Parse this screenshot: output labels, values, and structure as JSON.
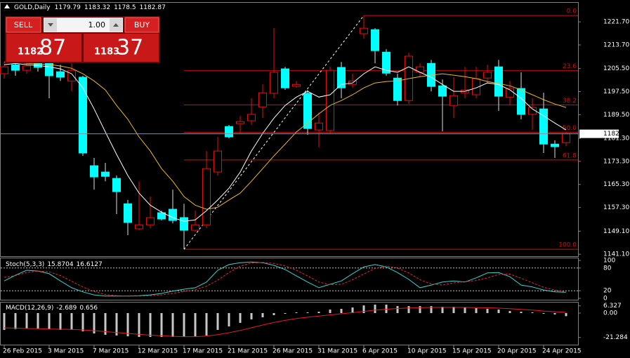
{
  "header": {
    "symbol": "GOLD,Daily"
  },
  "trade_panel": {
    "sell": "SELL",
    "buy": "BUY",
    "lots": "1.00",
    "bid_main": "1182",
    "bid_pips": "87",
    "ask_main": "1183",
    "ask_pips": "37"
  },
  "chart_data": [
    {
      "type": "candlestick",
      "categories": [
        "26 Feb 2015",
        null,
        null,
        null,
        "3 Mar 2015",
        null,
        null,
        null,
        "7 Mar 2015",
        null,
        null,
        null,
        "12 Mar 2015",
        null,
        null,
        null,
        "17 Mar 2015",
        null,
        null,
        null,
        "21 Mar 2015",
        null,
        null,
        null,
        "26 Mar 2015",
        null,
        null,
        null,
        "31 Mar 2015",
        null,
        null,
        null,
        "6 Apr 2015",
        null,
        null,
        null,
        "10 Apr 2015",
        null,
        null,
        null,
        "15 Apr 2015",
        null,
        null,
        null,
        "20 Apr 2015",
        null,
        null,
        null,
        "24 Apr 2015",
        null,
        null
      ],
      "open": [
        1203.7,
        1206.8,
        1204.9,
        1207.3,
        1207.8,
        1204.4,
        1201.2,
        1202.5,
        1171.8,
        1169.6,
        1167.4,
        1158.6,
        1149.9,
        1151.3,
        1155.5,
        1156.7,
        1153.8,
        1149.4,
        1151.3,
        1169.6,
        1185.4,
        1186.4,
        1187.4,
        1192.2,
        1196.9,
        1205.4,
        1199.3,
        1196.9,
        1184.2,
        1184.0,
        1205.9,
        1200.0,
        1217.6,
        1219.0,
        1211.2,
        1202.2,
        1194.4,
        1204.2,
        1207.3,
        1199.5,
        1192.7,
        1197.1,
        1196.4,
        1202.2,
        1206.1,
        1195.6,
        1198.6,
        1189.6,
        1191.5,
        1179.3,
        1179.79
      ],
      "high": [
        1207.8,
        1208.5,
        1207.8,
        1208.5,
        1209.8,
        1206.8,
        1207.3,
        1203.0,
        1174.5,
        1172.8,
        1168.4,
        1159.9,
        1166.4,
        1161.1,
        1156.2,
        1163.5,
        1158.6,
        1156.2,
        1176.9,
        1181.8,
        1185.9,
        1189.1,
        1195.2,
        1200.0,
        1219.5,
        1206.1,
        1201.2,
        1198.1,
        1190.3,
        1206.1,
        1207.8,
        1203.7,
        1223.9,
        1219.5,
        1212.2,
        1203.7,
        1211.0,
        1207.3,
        1208.5,
        1201.7,
        1202.5,
        1206.1,
        1206.1,
        1206.8,
        1208.5,
        1201.2,
        1204.2,
        1195.2,
        1197.1,
        1180.6,
        1183.32
      ],
      "low": [
        1202.0,
        1203.0,
        1203.7,
        1204.4,
        1195.2,
        1201.2,
        1197.6,
        1175.2,
        1163.5,
        1166.4,
        1155.0,
        1147.7,
        1149.4,
        1150.1,
        1152.8,
        1151.8,
        1142.8,
        1148.9,
        1150.1,
        1168.4,
        1181.3,
        1183.0,
        1185.9,
        1188.3,
        1195.2,
        1198.1,
        1198.8,
        1182.5,
        1178.1,
        1183.0,
        1195.2,
        1198.8,
        1215.9,
        1207.3,
        1203.0,
        1192.7,
        1193.2,
        1202.5,
        1197.6,
        1183.7,
        1188.3,
        1195.2,
        1195.2,
        1200.5,
        1190.8,
        1192.7,
        1187.9,
        1184.2,
        1176.2,
        1174.5,
        1178.5
      ],
      "close": [
        1206.1,
        1204.9,
        1206.4,
        1205.9,
        1203.0,
        1202.5,
        1204.9,
        1176.2,
        1167.9,
        1168.1,
        1162.8,
        1152.1,
        1151.3,
        1153.8,
        1153.3,
        1152.8,
        1149.4,
        1151.3,
        1170.8,
        1176.9,
        1181.8,
        1187.1,
        1189.6,
        1197.1,
        1204.2,
        1198.8,
        1200.0,
        1184.7,
        1186.6,
        1204.9,
        1198.8,
        1201.2,
        1219.5,
        1211.7,
        1203.9,
        1194.4,
        1209.8,
        1206.1,
        1199.3,
        1195.9,
        1196.1,
        1198.1,
        1202.0,
        1204.2,
        1195.9,
        1198.6,
        1189.6,
        1192.0,
        1179.3,
        1178.4,
        1182.87
      ],
      "up_color": "#e01010",
      "down_color": "#00ffff",
      "ylim": [
        1140.4,
        1224.9
      ],
      "yticks": [
        {
          "value": 1221.7,
          "label": "1221.70"
        },
        {
          "value": 1213.7,
          "label": "1213.70"
        },
        {
          "value": 1205.5,
          "label": "1205.50"
        },
        {
          "value": 1197.5,
          "label": "1197.50"
        },
        {
          "value": 1189.5,
          "label": "1189.50"
        },
        {
          "value": 1181.3,
          "label": "1181.30"
        },
        {
          "value": 1173.3,
          "label": "1173.30"
        },
        {
          "value": 1165.3,
          "label": "1165.30"
        },
        {
          "value": 1157.3,
          "label": "1157.30"
        },
        {
          "value": 1149.1,
          "label": "1149.10"
        },
        {
          "value": 1141.1,
          "label": "1141.10"
        }
      ],
      "moving_averages": [
        {
          "color": "#ffffff",
          "values": [
            1206.8,
            1207.3,
            1206.8,
            1206.6,
            1206.1,
            1205.4,
            1203.7,
            1198.8,
            1191.5,
            1183.5,
            1175.7,
            1168.4,
            1162.3,
            1158.1,
            1155.7,
            1153.8,
            1152.5,
            1153.0,
            1156.2,
            1159.9,
            1164.0,
            1169.6,
            1176.9,
            1183.0,
            1188.3,
            1192.7,
            1195.6,
            1197.6,
            1195.6,
            1196.4,
            1200.0,
            1200.5,
            1203.7,
            1206.1,
            1204.9,
            1204.2,
            1206.1,
            1204.2,
            1202.5,
            1200.0,
            1197.6,
            1197.6,
            1198.8,
            1200.5,
            1200.0,
            1198.1,
            1195.2,
            1191.5,
            1189.1,
            1186.6,
            1184.2
          ]
        },
        {
          "color": "#e8b830",
          "values": [
            1207.8,
            1207.8,
            1207.3,
            1207.1,
            1206.9,
            1206.4,
            1205.6,
            1203.7,
            1201.2,
            1198.1,
            1192.7,
            1187.9,
            1181.8,
            1176.9,
            1170.8,
            1166.4,
            1161.1,
            1158.1,
            1156.7,
            1157.4,
            1159.9,
            1162.3,
            1166.4,
            1170.8,
            1175.2,
            1179.3,
            1183.5,
            1186.6,
            1189.8,
            1192.7,
            1194.4,
            1196.4,
            1198.8,
            1200.5,
            1201.0,
            1201.2,
            1202.0,
            1202.7,
            1203.2,
            1203.7,
            1203.2,
            1202.7,
            1202.0,
            1201.0,
            1200.3,
            1199.5,
            1198.1,
            1196.4,
            1194.7,
            1193.2,
            1192.0
          ]
        }
      ],
      "fibonacci": {
        "high": 1223.9,
        "low": 1142.8,
        "color": "#d01010",
        "levels": [
          {
            "value": 0,
            "label": "0.0"
          },
          23.6,
          38.2,
          {
            "value": 50,
            "label": "50.0"
          },
          61.8,
          {
            "value": 100,
            "label": "100.0"
          }
        ]
      }
    },
    {
      "type": "stochastic",
      "title": "Stoch(5,3,3)",
      "ylim": [
        0,
        100
      ],
      "yticks": [
        100,
        80,
        20,
        0
      ],
      "series": [
        {
          "color": "#40d0d0",
          "values": [
            46,
            61,
            74,
            72,
            65,
            46,
            28,
            17,
            9,
            6,
            6,
            6,
            7,
            9,
            13,
            19,
            24,
            28,
            43,
            74,
            89,
            94,
            96,
            94,
            87,
            76,
            59,
            43,
            28,
            37,
            46,
            65,
            83,
            89,
            83,
            68,
            50,
            28,
            35,
            43,
            46,
            43,
            54,
            67,
            68,
            57,
            35,
            30,
            22,
            17,
            15.8704
          ]
        },
        {
          "color": "#e03030",
          "dashed": true,
          "values": [
            55,
            60,
            68,
            72,
            70,
            60,
            45,
            30,
            18,
            10,
            7,
            6,
            6,
            7,
            9,
            13,
            18,
            23,
            32,
            48,
            68,
            85,
            93,
            95,
            92,
            86,
            74,
            59,
            43,
            36,
            37,
            49,
            64,
            79,
            85,
            80,
            67,
            49,
            38,
            35,
            41,
            44,
            47,
            54,
            63,
            64,
            53,
            41,
            29,
            22,
            16.6127
          ]
        }
      ]
    },
    {
      "type": "macd",
      "title": "MACD(12,26,9)",
      "ylim": [
        -27.0,
        8.6
      ],
      "yticks": [
        6.327,
        {
          "value": 0,
          "label": "0.00"
        },
        -21.284
      ],
      "series": [
        {
          "color": "#c8c8c8",
          "style": "histogram",
          "values": [
            -14.7,
            -14.0,
            -13.5,
            -13.5,
            -14.0,
            -14.7,
            -14.7,
            -16.0,
            -17.8,
            -19.0,
            -19.6,
            -20.3,
            -20.9,
            -20.9,
            -20.9,
            -20.9,
            -20.9,
            -20.3,
            -19.6,
            -14.7,
            -11.7,
            -8.6,
            -5.5,
            -3.7,
            -1.8,
            -0.6,
            0.6,
            0.6,
            1.2,
            3.1,
            3.7,
            4.9,
            6.7,
            7.4,
            7.4,
            6.1,
            6.1,
            6.1,
            6.1,
            5.5,
            5.5,
            4.9,
            4.3,
            3.7,
            3.1,
            1.8,
            1.2,
            0.6,
            -0.6,
            -1.2,
            -2.689
          ]
        },
        {
          "color": "#e02020",
          "values": [
            -12.9,
            -13.2,
            -13.5,
            -13.7,
            -13.9,
            -14.1,
            -14.3,
            -14.7,
            -15.4,
            -16.2,
            -17.0,
            -17.8,
            -18.6,
            -19.3,
            -19.8,
            -20.3,
            -20.6,
            -20.6,
            -20.1,
            -18.9,
            -17.2,
            -15.2,
            -12.8,
            -10.4,
            -8.2,
            -6.4,
            -4.8,
            -3.6,
            -2.6,
            -1.6,
            -0.6,
            0.4,
            1.5,
            2.6,
            3.4,
            4.0,
            4.4,
            4.7,
            4.9,
            5.0,
            5.0,
            5.0,
            4.8,
            4.6,
            4.3,
            3.8,
            3.2,
            2.6,
            1.8,
            1.2,
            0.656
          ]
        }
      ]
    }
  ]
}
